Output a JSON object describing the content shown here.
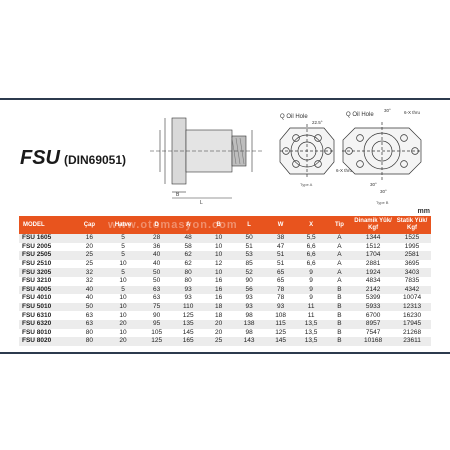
{
  "title": {
    "main": "FSU",
    "sub": "(DIN69051)"
  },
  "drawings": {
    "oil_hole_label_1": "Q Oil Hole",
    "oil_hole_label_2": "Q Oil Hole",
    "type_a_label": "Type A",
    "type_b_label": "Type B",
    "angle_1": "22.5°",
    "angle_2": "30°",
    "bolt_label_1": "6-X thru",
    "bolt_label_2": "6-X thru",
    "angle_3": "30°",
    "angle_4": "30°"
  },
  "unit": "mm",
  "table": {
    "headers": [
      "MODEL",
      "Çap",
      "Hatve",
      "D",
      "A",
      "B",
      "L",
      "W",
      "X",
      "Tip",
      "Dinamik Yük/ Kgf",
      "Statik Yük/ Kgf"
    ],
    "rows": [
      [
        "FSU 1605",
        "16",
        "5",
        "28",
        "48",
        "10",
        "50",
        "38",
        "5,5",
        "A",
        "1344",
        "1525"
      ],
      [
        "FSU 2005",
        "20",
        "5",
        "36",
        "58",
        "10",
        "51",
        "47",
        "6,6",
        "A",
        "1512",
        "1995"
      ],
      [
        "FSU 2505",
        "25",
        "5",
        "40",
        "62",
        "10",
        "53",
        "51",
        "6,6",
        "A",
        "1704",
        "2581"
      ],
      [
        "FSU 2510",
        "25",
        "10",
        "40",
        "62",
        "12",
        "85",
        "51",
        "6,6",
        "A",
        "2881",
        "3695"
      ],
      [
        "FSU 3205",
        "32",
        "5",
        "50",
        "80",
        "10",
        "52",
        "65",
        "9",
        "A",
        "1924",
        "3403"
      ],
      [
        "FSU 3210",
        "32",
        "10",
        "50",
        "80",
        "16",
        "90",
        "65",
        "9",
        "A",
        "4834",
        "7835"
      ],
      [
        "FSU 4005",
        "40",
        "5",
        "63",
        "93",
        "16",
        "56",
        "78",
        "9",
        "B",
        "2142",
        "4342"
      ],
      [
        "FSU 4010",
        "40",
        "10",
        "63",
        "93",
        "16",
        "93",
        "78",
        "9",
        "B",
        "5399",
        "10074"
      ],
      [
        "FSU 5010",
        "50",
        "10",
        "75",
        "110",
        "18",
        "93",
        "93",
        "11",
        "B",
        "5933",
        "12313"
      ],
      [
        "FSU 6310",
        "63",
        "10",
        "90",
        "125",
        "18",
        "98",
        "108",
        "11",
        "B",
        "6700",
        "16230"
      ],
      [
        "FSU 6320",
        "63",
        "20",
        "95",
        "135",
        "20",
        "138",
        "115",
        "13,5",
        "B",
        "8957",
        "17945"
      ],
      [
        "FSU 8010",
        "80",
        "10",
        "105",
        "145",
        "20",
        "98",
        "125",
        "13,5",
        "B",
        "7547",
        "21268"
      ],
      [
        "FSU 8020",
        "80",
        "20",
        "125",
        "165",
        "25",
        "143",
        "145",
        "13,5",
        "B",
        "10168",
        "23611"
      ]
    ]
  },
  "watermark": "www.otomasyon.com",
  "colors": {
    "header_bg": "#e8541e",
    "band": "#2c3a4d",
    "row_alt": "#ececec"
  }
}
